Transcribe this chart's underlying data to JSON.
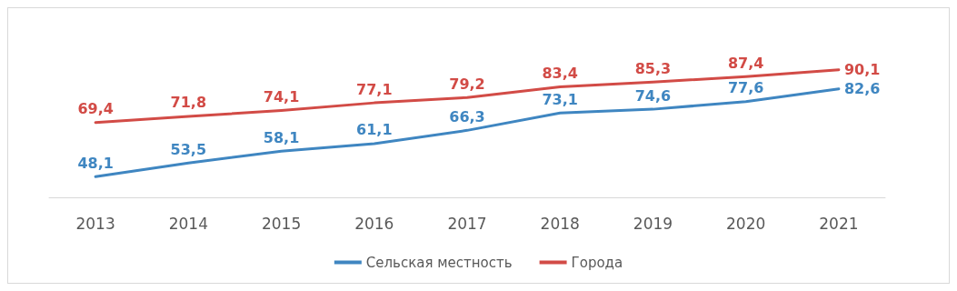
{
  "chart_data": {
    "type": "line",
    "categories": [
      "2013",
      "2014",
      "2015",
      "2016",
      "2017",
      "2018",
      "2019",
      "2020",
      "2021"
    ],
    "series": [
      {
        "name": "Сельская местность",
        "color": "#3f86c1",
        "values": [
          48.1,
          53.5,
          58.1,
          61.1,
          66.3,
          73.1,
          74.6,
          77.6,
          82.6
        ],
        "value_labels": [
          "48,1",
          "53,5",
          "58,1",
          "61,1",
          "66,3",
          "73,1",
          "74,6",
          "77,6",
          "82,6"
        ]
      },
      {
        "name": "Города",
        "color": "#d24b46",
        "values": [
          69.4,
          71.8,
          74.1,
          77.1,
          79.2,
          83.4,
          85.3,
          87.4,
          90.1
        ],
        "value_labels": [
          "69,4",
          "71,8",
          "74,1",
          "77,1",
          "79,2",
          "83,4",
          "85,3",
          "87,4",
          "90,1"
        ]
      }
    ],
    "grid": false,
    "legend": "bottom",
    "marker": "none",
    "line_style": "solid"
  }
}
